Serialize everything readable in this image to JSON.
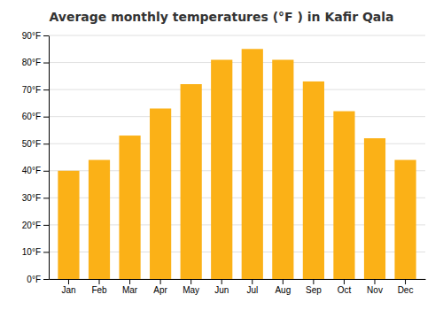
{
  "chart_data": {
    "type": "bar",
    "title": "Average monthly temperatures (°F ) in Kafir Qala",
    "categories": [
      "Jan",
      "Feb",
      "Mar",
      "Apr",
      "May",
      "Jun",
      "Jul",
      "Aug",
      "Sep",
      "Oct",
      "Nov",
      "Dec"
    ],
    "values": [
      40,
      44,
      53,
      63,
      72,
      81,
      85,
      81,
      73,
      62,
      52,
      44
    ],
    "color": "#FBB117",
    "ylim": [
      0,
      90
    ],
    "yticks": [
      {
        "value": 0,
        "label": "0°F"
      },
      {
        "value": 10,
        "label": "10°F"
      },
      {
        "value": 20,
        "label": "20°F"
      },
      {
        "value": 30,
        "label": "30°F"
      },
      {
        "value": 40,
        "label": "40°F"
      },
      {
        "value": 50,
        "label": "50°F"
      },
      {
        "value": 60,
        "label": "60°F"
      },
      {
        "value": 70,
        "label": "70°F"
      },
      {
        "value": 80,
        "label": "80°F"
      },
      {
        "value": 90,
        "label": "90°F"
      }
    ],
    "grid": true
  }
}
